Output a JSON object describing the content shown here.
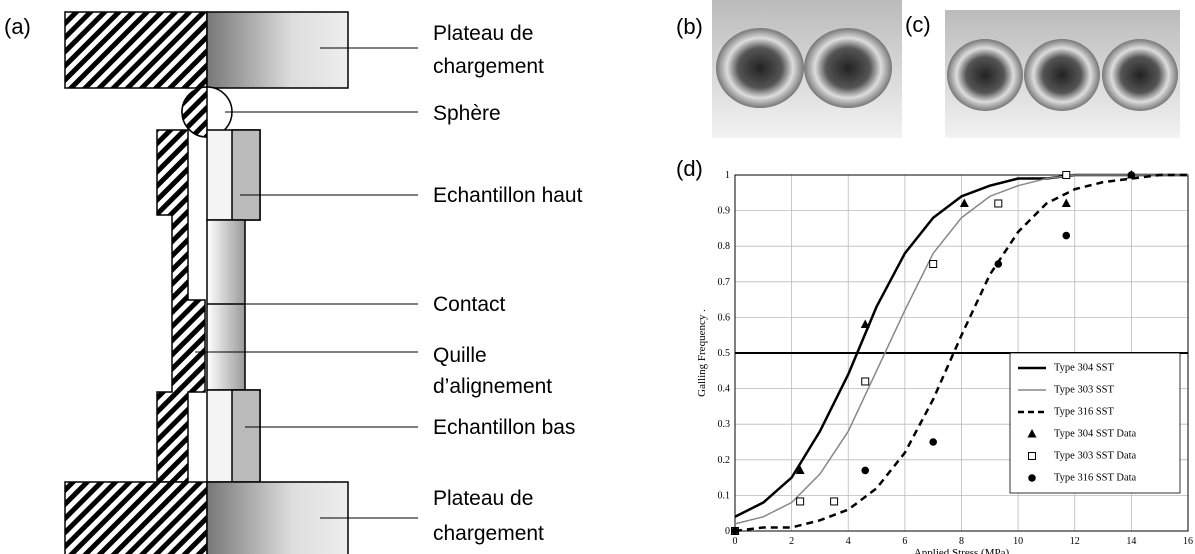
{
  "panels": [
    "(a)",
    "(b)",
    "(c)",
    "(d)"
  ],
  "diagram": {
    "labels": [
      {
        "lines": [
          "Plateau de",
          "chargement"
        ]
      },
      {
        "lines": [
          "Sphère"
        ]
      },
      {
        "lines": [
          "Echantillon haut"
        ]
      },
      {
        "lines": [
          "Contact"
        ]
      },
      {
        "lines": [
          "Quille",
          "d’alignement"
        ]
      },
      {
        "lines": [
          "Echantillon bas"
        ]
      },
      {
        "lines": [
          "Plateau de",
          "chargement"
        ]
      }
    ]
  },
  "chart_data": {
    "type": "line",
    "xlabel": "Applied Stress (MPa)",
    "ylabel": "Galling Frequency .",
    "xlim": [
      0,
      16
    ],
    "xticks": [
      0,
      2,
      4,
      6,
      8,
      10,
      12,
      14,
      16
    ],
    "ylim": [
      0,
      1
    ],
    "yticks": [
      0,
      0.1,
      0.2,
      0.3,
      0.4,
      0.5,
      0.6,
      0.7,
      0.8,
      0.9,
      1
    ],
    "grid": true,
    "legend": "lower right",
    "hline": 0.5,
    "series": [
      {
        "name": "Type 304 SST",
        "mark": "line",
        "color": "#000000",
        "width": 2.5,
        "dash": false,
        "x": [
          0,
          1,
          2,
          3,
          4,
          5,
          6,
          7,
          8,
          9,
          10,
          11,
          12,
          13,
          14,
          15,
          16
        ],
        "values": [
          0.04,
          0.08,
          0.15,
          0.28,
          0.44,
          0.63,
          0.78,
          0.88,
          0.94,
          0.97,
          0.99,
          0.99,
          1,
          1,
          1,
          1,
          1
        ]
      },
      {
        "name": "Type 303 SST",
        "mark": "line",
        "color": "#888888",
        "width": 1.5,
        "dash": false,
        "x": [
          0,
          1,
          2,
          3,
          4,
          5,
          6,
          7,
          8,
          9,
          10,
          11,
          12,
          13,
          14,
          15,
          16
        ],
        "values": [
          0.02,
          0.04,
          0.08,
          0.16,
          0.28,
          0.45,
          0.62,
          0.78,
          0.88,
          0.94,
          0.97,
          0.99,
          1,
          1,
          1,
          1,
          1
        ]
      },
      {
        "name": "Type 316 SST",
        "mark": "line",
        "color": "#000000",
        "width": 2.5,
        "dash": true,
        "x": [
          0,
          1,
          2,
          3,
          4,
          5,
          6,
          7,
          8,
          9,
          10,
          11,
          12,
          13,
          14,
          15,
          16
        ],
        "values": [
          0,
          0.01,
          0.01,
          0.03,
          0.06,
          0.12,
          0.22,
          0.37,
          0.55,
          0.72,
          0.84,
          0.92,
          0.96,
          0.98,
          0.99,
          1,
          1
        ]
      },
      {
        "name": "Type 304 SST Data",
        "mark": "triangle",
        "color": "#000000",
        "x": [
          0,
          2.3,
          4.6,
          8.1,
          11.7,
          14
        ],
        "values": [
          0,
          0.17,
          0.58,
          0.92,
          0.92,
          1
        ]
      },
      {
        "name": "Type 303 SST Data",
        "mark": "square",
        "color": "#000000",
        "x": [
          0,
          2.3,
          3.5,
          4.6,
          7,
          9.3,
          11.7
        ],
        "values": [
          0,
          0.083,
          0.083,
          0.42,
          0.75,
          0.92,
          1
        ]
      },
      {
        "name": "Type 316 SST Data",
        "mark": "circle",
        "color": "#000000",
        "x": [
          0,
          4.6,
          7,
          9.3,
          11.7,
          14
        ],
        "values": [
          0,
          0.17,
          0.25,
          0.75,
          0.83,
          1
        ]
      }
    ]
  }
}
